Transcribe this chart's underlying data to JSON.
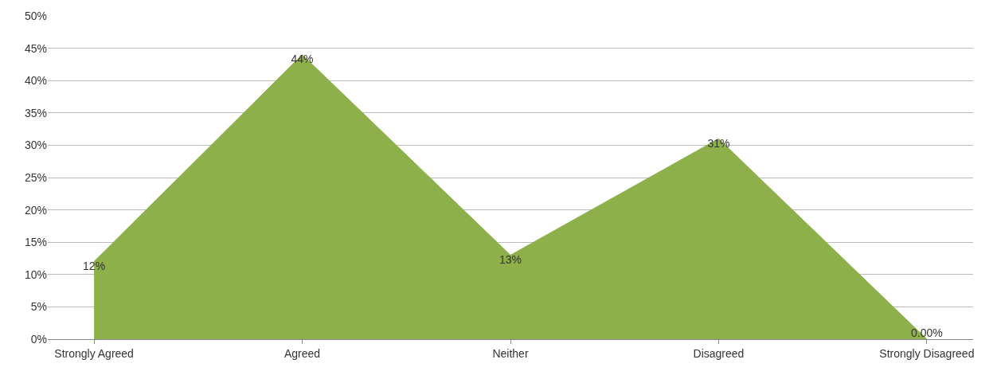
{
  "chart_data": {
    "type": "area",
    "categories": [
      "Strongly Agreed",
      "Agreed",
      "Neither",
      "Disagreed",
      "Strongly Disagreed"
    ],
    "values": [
      12,
      44,
      13,
      31,
      0
    ],
    "value_labels": [
      "12%",
      "44%",
      "13%",
      "31%",
      "0.00%"
    ],
    "color": "#8db04b",
    "ylim": [
      0,
      50
    ],
    "yticks": [
      {
        "value": 0,
        "label": "0%"
      },
      {
        "value": 5,
        "label": "5%"
      },
      {
        "value": 10,
        "label": "10%"
      },
      {
        "value": 15,
        "label": "15%"
      },
      {
        "value": 20,
        "label": "20%"
      },
      {
        "value": 25,
        "label": "25%"
      },
      {
        "value": 30,
        "label": "30%"
      },
      {
        "value": 35,
        "label": "35%"
      },
      {
        "value": 40,
        "label": "40%"
      },
      {
        "value": 45,
        "label": "45%"
      },
      {
        "value": 50,
        "label": "50%"
      }
    ],
    "grid": "y"
  }
}
